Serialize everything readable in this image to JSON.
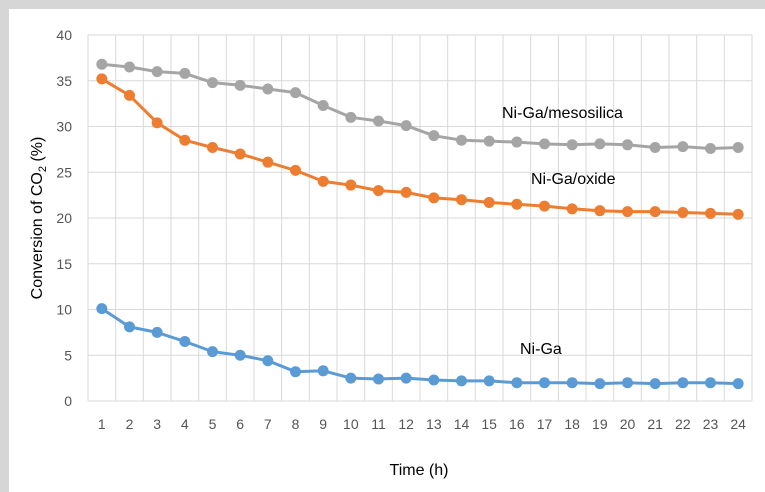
{
  "chart_data": {
    "type": "line",
    "title": "",
    "xlabel": "Time (h)",
    "ylabel_main": "Conversion of CO",
    "ylabel_sub": "2",
    "ylabel_suffix": " (%)",
    "ylim": [
      0,
      40
    ],
    "yticks": [
      0,
      5,
      10,
      15,
      20,
      25,
      30,
      35,
      40
    ],
    "grid": true,
    "legend": "none",
    "x": [
      1,
      2,
      3,
      4,
      5,
      6,
      7,
      8,
      9,
      10,
      11,
      12,
      13,
      14,
      15,
      16,
      17,
      18,
      19,
      20,
      21,
      22,
      23,
      24
    ],
    "series": [
      {
        "name": "Ni-Ga/mesosilica",
        "color": "#a5a5a5",
        "values": [
          36.8,
          36.5,
          36.0,
          35.8,
          34.8,
          34.5,
          34.1,
          33.7,
          32.3,
          31.0,
          30.6,
          30.1,
          29.0,
          28.5,
          28.4,
          28.3,
          28.1,
          28.0,
          28.1,
          28.0,
          27.7,
          27.8,
          27.6,
          27.7
        ]
      },
      {
        "name": "Ni-Ga/oxide",
        "color": "#ed7d31",
        "values": [
          35.2,
          33.4,
          30.4,
          28.5,
          27.7,
          27.0,
          26.1,
          25.2,
          24.0,
          23.6,
          23.0,
          22.8,
          22.2,
          22.0,
          21.7,
          21.5,
          21.3,
          21.0,
          20.8,
          20.7,
          20.7,
          20.6,
          20.5,
          20.4
        ]
      },
      {
        "name": "Ni-Ga",
        "color": "#5b9bd5",
        "values": [
          10.1,
          8.1,
          7.5,
          6.5,
          5.4,
          5.0,
          4.4,
          3.2,
          3.3,
          2.5,
          2.4,
          2.5,
          2.3,
          2.2,
          2.2,
          2.0,
          2.0,
          2.0,
          1.9,
          2.0,
          1.9,
          2.0,
          2.0,
          1.9
        ]
      }
    ]
  }
}
